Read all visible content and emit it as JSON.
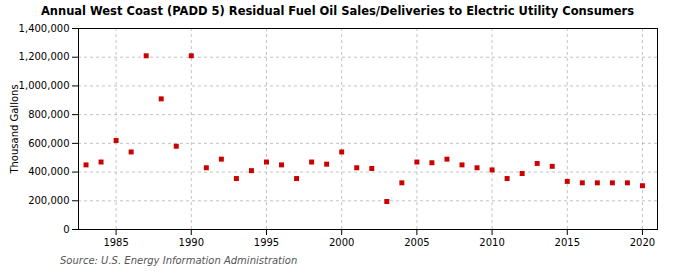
{
  "chart_data": {
    "type": "scatter",
    "title": "Annual West Coast (PADD 5) Residual Fuel Oil Sales/Deliveries to Electric Utility Consumers",
    "ylabel": "Thousand Gallons",
    "source": "Source: U.S. Energy Information Administration",
    "x": [
      1983,
      1984,
      1985,
      1986,
      1987,
      1988,
      1989,
      1990,
      1991,
      1992,
      1993,
      1994,
      1995,
      1996,
      1997,
      1998,
      1999,
      2000,
      2001,
      2002,
      2003,
      2004,
      2005,
      2006,
      2007,
      2008,
      2009,
      2010,
      2011,
      2012,
      2013,
      2014,
      2015,
      2016,
      2017,
      2018,
      2019,
      2020
    ],
    "values": [
      450000,
      470000,
      620000,
      540000,
      1210000,
      910000,
      580000,
      1210000,
      430000,
      490000,
      355000,
      410000,
      470000,
      450000,
      355000,
      470000,
      455000,
      540000,
      430000,
      425000,
      195000,
      325000,
      470000,
      465000,
      490000,
      450000,
      430000,
      415000,
      355000,
      390000,
      460000,
      440000,
      335000,
      325000,
      325000,
      325000,
      325000,
      305000
    ],
    "color": "#cc0000",
    "marker": "square",
    "xlim": [
      1982.5,
      2021
    ],
    "xticks": [
      1985,
      1990,
      1995,
      2000,
      2005,
      2010,
      2015,
      2020
    ],
    "ylim": [
      0,
      1400000
    ],
    "yticks": [
      0,
      {
        "value": 200000,
        "label": "200,000"
      },
      {
        "value": 400000,
        "label": "400,000"
      },
      {
        "value": 600000,
        "label": "600,000"
      },
      {
        "value": 800000,
        "label": "800,000"
      },
      {
        "value": 1000000,
        "label": "1,000,000"
      },
      {
        "value": 1200000,
        "label": "1,200,000"
      },
      {
        "value": 1400000,
        "label": "1,400,000"
      }
    ],
    "grid": true
  }
}
